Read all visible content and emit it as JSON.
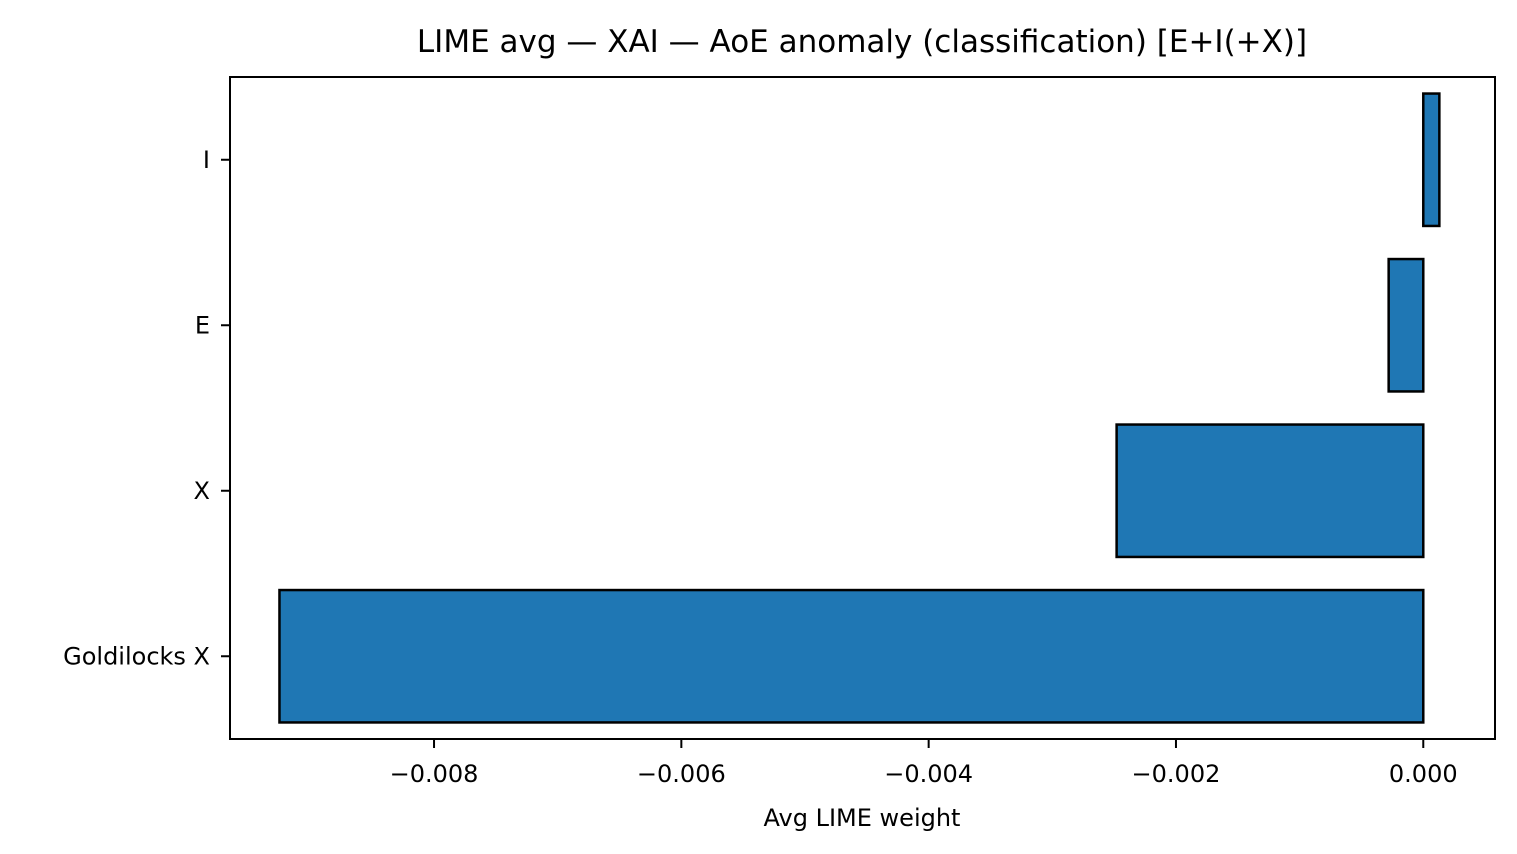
{
  "chart_data": {
    "type": "bar",
    "orientation": "horizontal",
    "title": "LIME avg — XAI — AoE anomaly (classification) [E+I(+X)]",
    "xlabel": "Avg LIME weight",
    "ylabel": "",
    "categories": [
      "Goldilocks X",
      "X",
      "E",
      "I"
    ],
    "values": [
      -0.00925,
      -0.00248,
      -0.00028,
      0.00013
    ],
    "xlim": [
      -0.00965,
      0.00058
    ],
    "xticks": [
      -0.008,
      -0.006,
      -0.004,
      -0.002,
      0.0
    ],
    "xtick_labels": [
      "−0.008",
      "−0.006",
      "−0.004",
      "−0.002",
      "0.000"
    ],
    "grid": false,
    "bar_color": "#1f77b4",
    "edge_color": "#000000"
  }
}
